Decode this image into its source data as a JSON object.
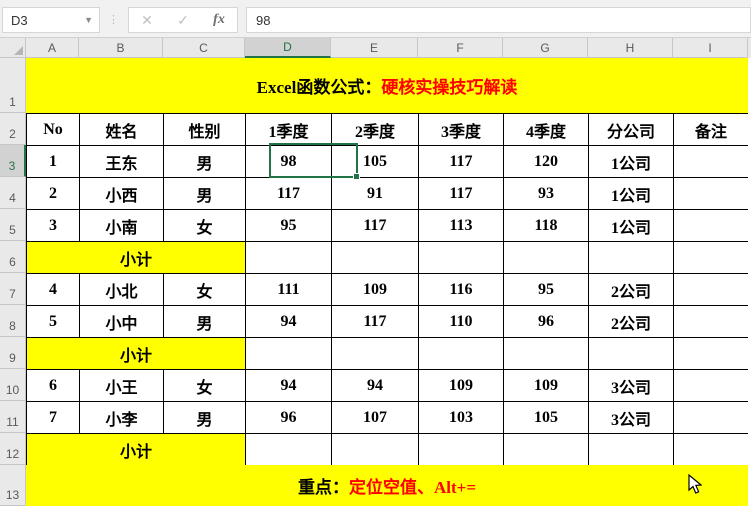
{
  "formula_bar": {
    "name_box": "D3",
    "cancel_icon": "✕",
    "confirm_icon": "✓",
    "fx_icon": "fx",
    "value": "98"
  },
  "grid": {
    "column_headers": [
      "A",
      "B",
      "C",
      "D",
      "E",
      "F",
      "G",
      "H",
      "I"
    ],
    "row_numbers": [
      "1",
      "2",
      "3",
      "4",
      "5",
      "6",
      "7",
      "8",
      "9",
      "10",
      "11",
      "12",
      "13"
    ],
    "selected_column": "D",
    "selected_row": "3",
    "selected_cell": "D3"
  },
  "title_row": {
    "prefix": "Excel函数公式：",
    "highlight": "硬核实操技巧解读"
  },
  "table": {
    "headers": [
      "No",
      "姓名",
      "性别",
      "1季度",
      "2季度",
      "3季度",
      "4季度",
      "分公司",
      "备注"
    ],
    "rows": [
      {
        "cells": [
          "1",
          "王东",
          "男",
          "98",
          "105",
          "117",
          "120",
          "1公司",
          ""
        ]
      },
      {
        "cells": [
          "2",
          "小西",
          "男",
          "117",
          "91",
          "117",
          "93",
          "1公司",
          ""
        ]
      },
      {
        "cells": [
          "3",
          "小南",
          "女",
          "95",
          "117",
          "113",
          "118",
          "1公司",
          ""
        ]
      },
      {
        "subtotal": "小计"
      },
      {
        "cells": [
          "4",
          "小北",
          "女",
          "111",
          "109",
          "116",
          "95",
          "2公司",
          ""
        ]
      },
      {
        "cells": [
          "5",
          "小中",
          "男",
          "94",
          "117",
          "110",
          "96",
          "2公司",
          ""
        ]
      },
      {
        "subtotal": "小计"
      },
      {
        "cells": [
          "6",
          "小王",
          "女",
          "94",
          "94",
          "109",
          "109",
          "3公司",
          ""
        ]
      },
      {
        "cells": [
          "7",
          "小李",
          "男",
          "96",
          "107",
          "103",
          "105",
          "3公司",
          ""
        ]
      },
      {
        "subtotal": "小计"
      }
    ]
  },
  "footer_row": {
    "prefix": "重点：",
    "highlight": "定位空值、Alt+="
  },
  "colors": {
    "banner_yellow": "#FFFF00",
    "highlight_red": "#FF0000",
    "selection_green": "#217346"
  }
}
